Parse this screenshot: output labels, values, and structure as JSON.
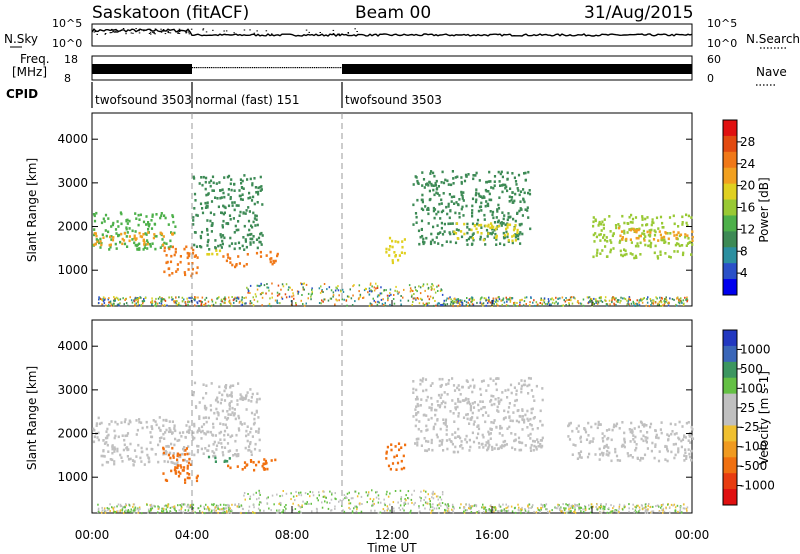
{
  "header": {
    "station": "Saskatoon (fitACF)",
    "beam": "Beam 00",
    "date": "31/Aug/2015"
  },
  "labels": {
    "nsky": "N.Sky",
    "nsearch": "N.Search",
    "freq_line1": "Freq.",
    "freq_line2": "[MHz]",
    "nave": "Nave",
    "cpid": "CPID",
    "nsky_ticks": [
      "10^5",
      "10^0"
    ],
    "nsearch_ticks": [
      "10^5",
      "10^0"
    ],
    "freq_ticks": [
      "18",
      "8"
    ],
    "nave_ticks": [
      "60",
      "0"
    ]
  },
  "cpid_segments": [
    {
      "label": "twofsound 3503",
      "start_hour": 0
    },
    {
      "label": "normal (fast) 151",
      "start_hour": 4
    },
    {
      "label": "twofsound 3503",
      "start_hour": 10
    }
  ],
  "chart_data": [
    {
      "type": "heatmap",
      "name": "power",
      "ylabel": "Slant Range [km]",
      "ylim": [
        180,
        4600
      ],
      "yticks": [
        1000,
        2000,
        3000,
        4000
      ],
      "colorbar": {
        "label": "Power [dB]",
        "ticks": [
          4,
          8,
          12,
          16,
          20,
          24,
          28
        ],
        "range": [
          0,
          32
        ],
        "colors": [
          "#0000ee",
          "#2a50c8",
          "#2b8fa0",
          "#3d8a55",
          "#4db04a",
          "#99c934",
          "#e0d020",
          "#f1a020",
          "#f07818",
          "#e24a10",
          "#e01010"
        ]
      },
      "regions": [
        {
          "t": [
            0,
            3.3
          ],
          "r": [
            1500,
            2350
          ],
          "level": 14
        },
        {
          "t": [
            0,
            3.3
          ],
          "r": [
            1600,
            1900
          ],
          "level": 22
        },
        {
          "t": [
            2.8,
            4.2
          ],
          "r": [
            900,
            1600
          ],
          "level": 24
        },
        {
          "t": [
            4.0,
            6.8
          ],
          "r": [
            1500,
            3200
          ],
          "level": 11
        },
        {
          "t": [
            4.5,
            5.4
          ],
          "r": [
            1350,
            1500
          ],
          "level": 20
        },
        {
          "t": [
            5.2,
            6.3
          ],
          "r": [
            1100,
            1400
          ],
          "level": 25
        },
        {
          "t": [
            6.4,
            7.4
          ],
          "r": [
            1150,
            1450
          ],
          "level": 26
        },
        {
          "t": [
            11.7,
            12.5
          ],
          "r": [
            1200,
            1800
          ],
          "level": 18
        },
        {
          "t": [
            12.8,
            17.5
          ],
          "r": [
            1600,
            3300
          ],
          "level": 10
        },
        {
          "t": [
            14.3,
            17.0
          ],
          "r": [
            1700,
            2100
          ],
          "level": 19
        },
        {
          "t": [
            20.0,
            24.0
          ],
          "r": [
            1300,
            2300
          ],
          "level": 15
        },
        {
          "t": [
            21.0,
            24.0
          ],
          "r": [
            1700,
            2000
          ],
          "level": 22
        }
      ]
    },
    {
      "type": "heatmap",
      "name": "velocity",
      "ylabel": "Slant Range [km]",
      "ylim": [
        180,
        4600
      ],
      "yticks": [
        1000,
        2000,
        3000,
        4000
      ],
      "colorbar": {
        "label": "Velocity [m s-1]",
        "ticks": [
          1000,
          500,
          100,
          25,
          -25,
          -100,
          -500,
          -1000
        ],
        "colors": [
          "#2238c0",
          "#3a66b8",
          "#3c9660",
          "#64c044",
          "#c0c0c0",
          "#c0c0c0",
          "#f0c030",
          "#f09a20",
          "#f07010",
          "#e83c10",
          "#e01010"
        ]
      },
      "regions": [
        {
          "t": [
            0,
            4.0
          ],
          "r": [
            1300,
            2400
          ],
          "level": 0
        },
        {
          "t": [
            2.8,
            4.2
          ],
          "r": [
            900,
            1700
          ],
          "level": -400
        },
        {
          "t": [
            4.0,
            6.7
          ],
          "r": [
            1500,
            3200
          ],
          "level": 0
        },
        {
          "t": [
            4.6,
            5.6
          ],
          "r": [
            1350,
            1500
          ],
          "level": 300
        },
        {
          "t": [
            5.4,
            7.4
          ],
          "r": [
            1150,
            1450
          ],
          "level": -500
        },
        {
          "t": [
            11.7,
            12.5
          ],
          "r": [
            1200,
            1800
          ],
          "level": -300
        },
        {
          "t": [
            12.8,
            18.0
          ],
          "r": [
            1600,
            3300
          ],
          "level": 0
        },
        {
          "t": [
            19.0,
            24.0
          ],
          "r": [
            1400,
            2300
          ],
          "level": 0
        }
      ]
    }
  ],
  "x_axis": {
    "label": "Time UT",
    "ticks": [
      "00:00",
      "04:00",
      "08:00",
      "12:00",
      "16:00",
      "20:00",
      "00:00"
    ]
  }
}
